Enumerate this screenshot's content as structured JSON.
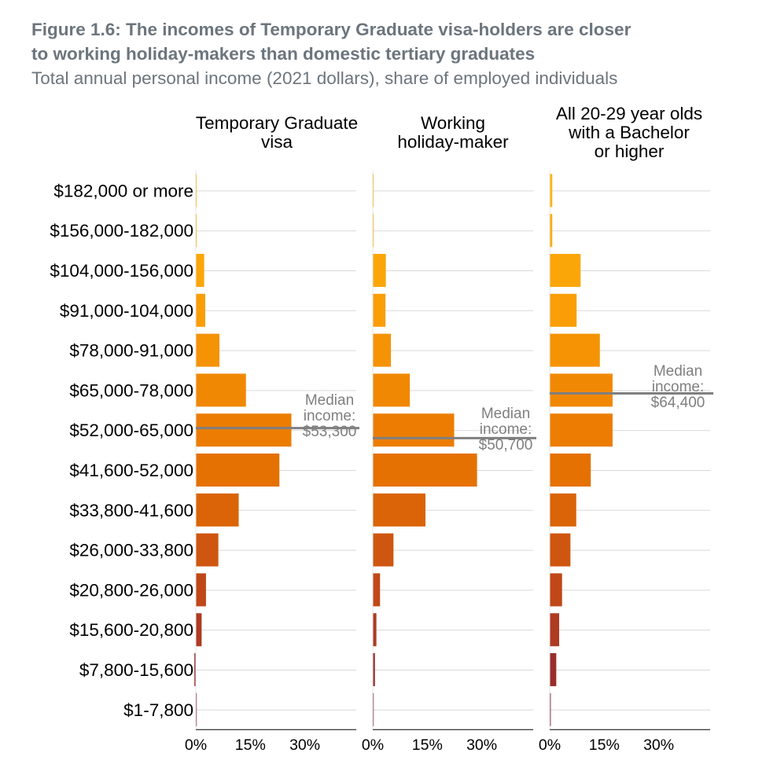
{
  "title_line1": "Figure 1.6: The incomes of Temporary Graduate visa-holders are closer",
  "title_line2": "to working holiday-makers than domestic tertiary graduates",
  "subtitle": "Total annual personal income (2021 dollars), share of employed individuals",
  "chart_data": {
    "type": "bar",
    "orientation": "horizontal",
    "categories": [
      "$182,000 or more",
      "$156,000-182,000",
      "$104,000-156,000",
      "$91,000-104,000",
      "$78,000-91,000",
      "$65,000-78,000",
      "$52,000-65,000",
      "$41,600-52,000",
      "$33,800-41,600",
      "$26,000-33,800",
      "$20,800-26,000",
      "$15,600-20,800",
      "$7,800-15,600",
      "$1-7,800"
    ],
    "bar_colors": [
      "#fdb30f",
      "#fdac0b",
      "#fba608",
      "#f99e06",
      "#f59304",
      "#f18803",
      "#ec7d02",
      "#e57102",
      "#da6407",
      "#cf5610",
      "#c04818",
      "#ae3b22",
      "#9a2e2c",
      "#7d2746"
    ],
    "xlim": [
      0,
      45
    ],
    "xticks": [
      0,
      15,
      30
    ],
    "xtick_labels": [
      "0%",
      "15%",
      "30%"
    ],
    "series": [
      {
        "name": "Temporary Graduate visa",
        "title_lines": [
          "Temporary Graduate",
          "visa"
        ],
        "values": [
          0.1,
          0.2,
          2.3,
          2.6,
          6.5,
          13.8,
          26.3,
          23.0,
          11.8,
          6.2,
          2.8,
          1.6,
          -0.4,
          0.1
        ],
        "median_label": [
          "Median",
          "income:",
          "$53,300"
        ],
        "median_band_position": 6.45
      },
      {
        "name": "Working holiday-maker",
        "title_lines": [
          "Working",
          "holiday-maker"
        ],
        "values": [
          0.1,
          0.2,
          3.6,
          3.5,
          5.0,
          10.2,
          22.4,
          28.7,
          14.5,
          5.7,
          2.0,
          1.0,
          0.6,
          0.1
        ],
        "median_label": [
          "Median",
          "income:",
          "$50,700"
        ],
        "median_band_position": 6.7
      },
      {
        "name": "All 20-29 year olds with a Bachelor or higher",
        "title_lines": [
          "All 20-29 year olds",
          "with a Bachelor",
          "or higher"
        ],
        "values": [
          0.7,
          0.7,
          8.5,
          7.4,
          13.8,
          17.3,
          17.3,
          11.3,
          7.3,
          5.7,
          3.4,
          2.6,
          1.8,
          0.3
        ],
        "median_label": [
          "Median",
          "income:",
          "$64,400"
        ],
        "median_band_position": 5.58
      }
    ]
  }
}
